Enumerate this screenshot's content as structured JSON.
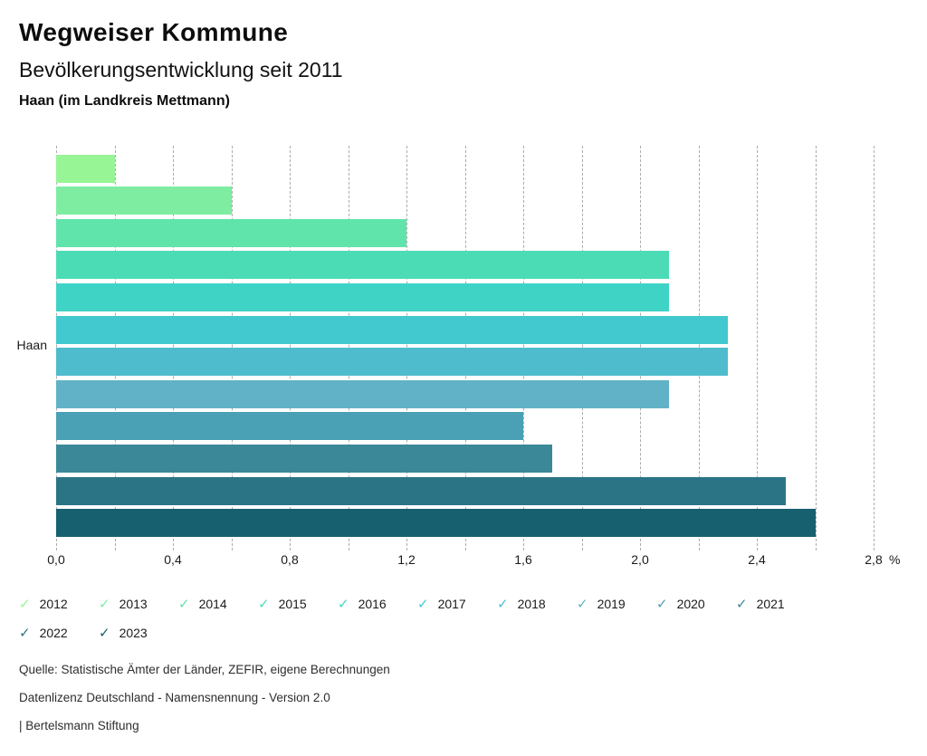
{
  "header": {
    "title": "Wegweiser Kommune",
    "subtitle": "Bevölkerungsentwicklung seit 2011",
    "region_heading": "Haan (im Landkreis Mettmann)"
  },
  "chart_data": {
    "type": "bar",
    "orientation": "horizontal",
    "title": "Bevölkerungsentwicklung seit 2011",
    "category": "Haan",
    "unit": "%",
    "xlim": [
      0,
      2.8
    ],
    "grid_step": 0.2,
    "grid": "dashed-vertical",
    "legend_position": "bottom",
    "legend_icon": "✓",
    "x_ticks": [
      {
        "value": 0.0,
        "label": "0,0"
      },
      {
        "value": 0.4,
        "label": "0,4"
      },
      {
        "value": 0.8,
        "label": "0,8"
      },
      {
        "value": 1.2,
        "label": "1,2"
      },
      {
        "value": 1.6,
        "label": "1,6"
      },
      {
        "value": 2.0,
        "label": "2,0"
      },
      {
        "value": 2.4,
        "label": "2,4"
      },
      {
        "value": 2.8,
        "label": "2,8"
      }
    ],
    "series": [
      {
        "name": "2012",
        "value": 0.2,
        "color": "#98f596"
      },
      {
        "name": "2013",
        "value": 0.6,
        "color": "#7eeda1"
      },
      {
        "name": "2014",
        "value": 1.2,
        "color": "#60e4ab"
      },
      {
        "name": "2015",
        "value": 2.1,
        "color": "#4cdcb5"
      },
      {
        "name": "2016",
        "value": 2.1,
        "color": "#3fd3c6"
      },
      {
        "name": "2017",
        "value": 2.3,
        "color": "#42c9cf"
      },
      {
        "name": "2018",
        "value": 2.3,
        "color": "#4fbccd"
      },
      {
        "name": "2019",
        "value": 2.1,
        "color": "#61b2c6"
      },
      {
        "name": "2020",
        "value": 1.6,
        "color": "#4aa0b5"
      },
      {
        "name": "2021",
        "value": 1.7,
        "color": "#3b8899"
      },
      {
        "name": "2022",
        "value": 2.5,
        "color": "#2b7486"
      },
      {
        "name": "2023",
        "value": 2.6,
        "color": "#17606f"
      }
    ]
  },
  "footer": {
    "source": "Quelle: Statistische Ämter der Länder, ZEFIR, eigene Berechnungen",
    "license": "Datenlizenz Deutschland - Namensnennung - Version 2.0",
    "attribution": "| Bertelsmann Stiftung"
  }
}
